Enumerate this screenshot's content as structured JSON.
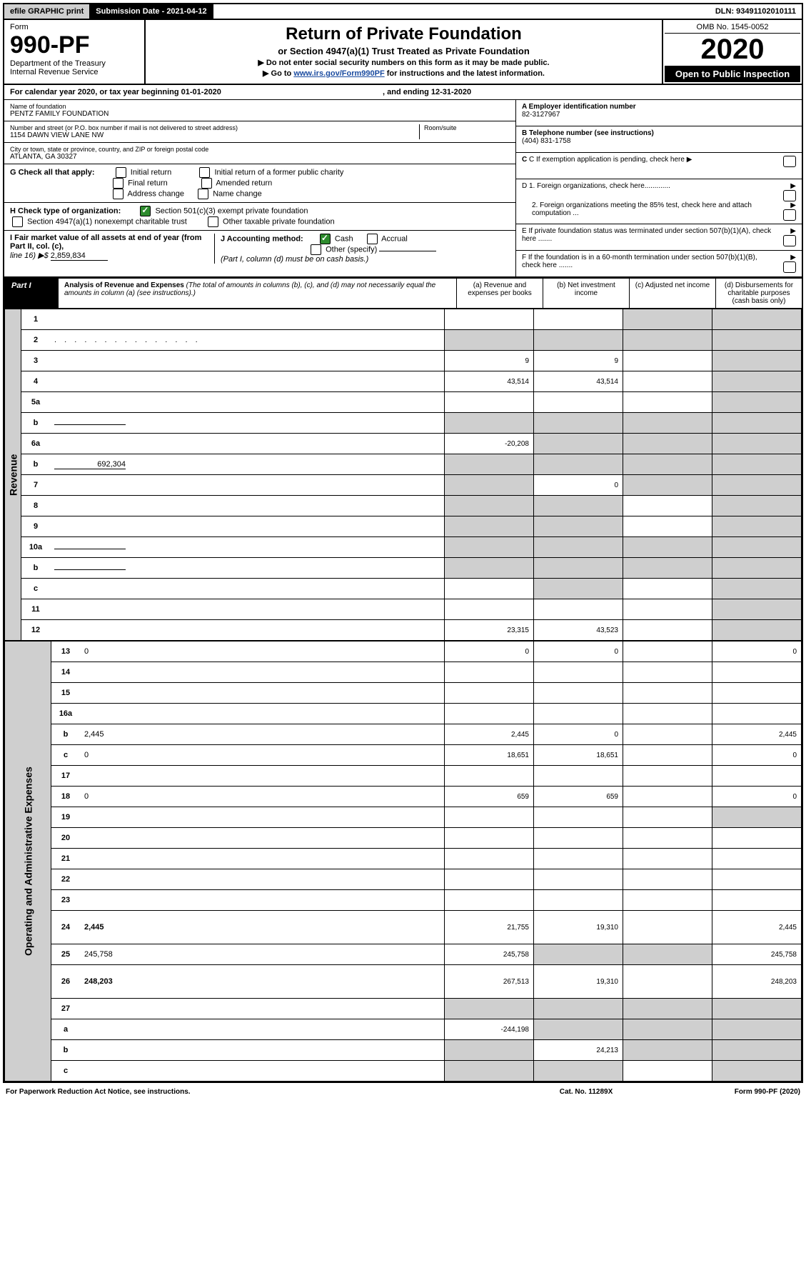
{
  "topbar": {
    "efile": "efile GRAPHIC print",
    "submission": "Submission Date - 2021-04-12",
    "dln": "DLN: 93491102010111"
  },
  "header": {
    "form_word": "Form",
    "form_no": "990-PF",
    "dept": "Department of the Treasury",
    "irs": "Internal Revenue Service",
    "title": "Return of Private Foundation",
    "subtitle": "or Section 4947(a)(1) Trust Treated as Private Foundation",
    "warn1": "▶ Do not enter social security numbers on this form as it may be made public.",
    "warn2_pre": "▶ Go to ",
    "warn2_link": "www.irs.gov/Form990PF",
    "warn2_post": " for instructions and the latest information.",
    "omb": "OMB No. 1545-0052",
    "year": "2020",
    "open": "Open to Public Inspection"
  },
  "calyear": "For calendar year 2020, or tax year beginning 01-01-2020",
  "calyear_end": ", and ending 12-31-2020",
  "info": {
    "name_lab": "Name of foundation",
    "name": "PENTZ FAMILY FOUNDATION",
    "addr_lab": "Number and street (or P.O. box number if mail is not delivered to street address)",
    "addr": "1154 DAWN VIEW LANE NW",
    "room_lab": "Room/suite",
    "city_lab": "City or town, state or province, country, and ZIP or foreign postal code",
    "city": "ATLANTA, GA  30327",
    "ein_lab": "A Employer identification number",
    "ein": "82-3127967",
    "tel_lab": "B Telephone number (see instructions)",
    "tel": "(404) 831-1758",
    "c_lab": "C If exemption application is pending, check here",
    "d1": "D 1. Foreign organizations, check here.............",
    "d2": "2. Foreign organizations meeting the 85% test, check here and attach computation ...",
    "e": "E  If private foundation status was terminated under section 507(b)(1)(A), check here .......",
    "f": "F  If the foundation is in a 60-month termination under section 507(b)(1)(B), check here ......."
  },
  "g": {
    "label": "G Check all that apply:",
    "initial": "Initial return",
    "final": "Final return",
    "address": "Address change",
    "initial_former": "Initial return of a former public charity",
    "amended": "Amended return",
    "name": "Name change"
  },
  "h": {
    "label": "H Check type of organization:",
    "s501": "Section 501(c)(3) exempt private foundation",
    "s4947": "Section 4947(a)(1) nonexempt charitable trust",
    "other_tax": "Other taxable private foundation"
  },
  "i": {
    "label": "I Fair market value of all assets at end of year (from Part II, col. (c),",
    "line": "line 16) ▶$",
    "value": "2,859,834"
  },
  "j": {
    "label": "J Accounting method:",
    "cash": "Cash",
    "accrual": "Accrual",
    "other": "Other (specify)",
    "note": "(Part I, column (d) must be on cash basis.)"
  },
  "part1": {
    "label": "Part I",
    "title": "Analysis of Revenue and Expenses",
    "paren": "(The total of amounts in columns (b), (c), and (d) may not necessarily equal the amounts in column (a) (see instructions).)",
    "col_a": "(a)   Revenue and expenses per books",
    "col_b": "(b)  Net investment income",
    "col_c": "(c)  Adjusted net income",
    "col_d": "(d)  Disbursements for charitable purposes (cash basis only)"
  },
  "revenue_label": "Revenue",
  "expenses_label": "Operating and Administrative Expenses",
  "rows": [
    {
      "n": "1",
      "d": "",
      "a": "",
      "b": "",
      "c": "",
      "shade_c": true,
      "shade_d": true
    },
    {
      "n": "2",
      "d": "",
      "a": "",
      "b": "",
      "c": "",
      "shade_a": true,
      "shade_b": true,
      "shade_c": true,
      "shade_d": true,
      "has_check": true
    },
    {
      "n": "3",
      "d": "",
      "a": "9",
      "b": "9",
      "c": "",
      "shade_d": true
    },
    {
      "n": "4",
      "d": "",
      "a": "43,514",
      "b": "43,514",
      "c": "",
      "shade_d": true
    },
    {
      "n": "5a",
      "d": "",
      "a": "",
      "b": "",
      "c": "",
      "shade_d": true
    },
    {
      "n": "b",
      "d": "",
      "a": "",
      "b": "",
      "c": "",
      "shade_a": true,
      "shade_b": true,
      "shade_c": true,
      "shade_d": true,
      "inline": true
    },
    {
      "n": "6a",
      "d": "",
      "a": "-20,208",
      "b": "",
      "c": "",
      "shade_b": true,
      "shade_c": true,
      "shade_d": true
    },
    {
      "n": "b",
      "d": "",
      "a": "",
      "b": "",
      "c": "",
      "shade_a": true,
      "shade_b": true,
      "shade_c": true,
      "shade_d": true,
      "inline": true,
      "inline_val": "692,304"
    },
    {
      "n": "7",
      "d": "",
      "a": "",
      "b": "0",
      "c": "",
      "shade_a": true,
      "shade_c": true,
      "shade_d": true
    },
    {
      "n": "8",
      "d": "",
      "a": "",
      "b": "",
      "c": "",
      "shade_a": true,
      "shade_b": true,
      "shade_d": true
    },
    {
      "n": "9",
      "d": "",
      "a": "",
      "b": "",
      "c": "",
      "shade_a": true,
      "shade_b": true,
      "shade_d": true
    },
    {
      "n": "10a",
      "d": "",
      "a": "",
      "b": "",
      "c": "",
      "shade_a": true,
      "shade_b": true,
      "shade_c": true,
      "shade_d": true,
      "inline": true
    },
    {
      "n": "b",
      "d": "",
      "a": "",
      "b": "",
      "c": "",
      "shade_a": true,
      "shade_b": true,
      "shade_c": true,
      "shade_d": true,
      "inline": true
    },
    {
      "n": "c",
      "d": "",
      "a": "",
      "b": "",
      "c": "",
      "shade_b": true,
      "shade_d": true
    },
    {
      "n": "11",
      "d": "",
      "a": "",
      "b": "",
      "c": "",
      "shade_d": true
    },
    {
      "n": "12",
      "d": "",
      "a": "23,315",
      "b": "43,523",
      "c": "",
      "shade_d": true,
      "bold": true
    }
  ],
  "exp_rows": [
    {
      "n": "13",
      "d": "0",
      "a": "0",
      "b": "0",
      "c": ""
    },
    {
      "n": "14",
      "d": "",
      "a": "",
      "b": "",
      "c": ""
    },
    {
      "n": "15",
      "d": "",
      "a": "",
      "b": "",
      "c": ""
    },
    {
      "n": "16a",
      "d": "",
      "a": "",
      "b": "",
      "c": ""
    },
    {
      "n": "b",
      "d": "2,445",
      "a": "2,445",
      "b": "0",
      "c": ""
    },
    {
      "n": "c",
      "d": "0",
      "a": "18,651",
      "b": "18,651",
      "c": ""
    },
    {
      "n": "17",
      "d": "",
      "a": "",
      "b": "",
      "c": ""
    },
    {
      "n": "18",
      "d": "0",
      "a": "659",
      "b": "659",
      "c": ""
    },
    {
      "n": "19",
      "d": "",
      "a": "",
      "b": "",
      "c": "",
      "shade_d": true
    },
    {
      "n": "20",
      "d": "",
      "a": "",
      "b": "",
      "c": ""
    },
    {
      "n": "21",
      "d": "",
      "a": "",
      "b": "",
      "c": ""
    },
    {
      "n": "22",
      "d": "",
      "a": "",
      "b": "",
      "c": ""
    },
    {
      "n": "23",
      "d": "",
      "a": "",
      "b": "",
      "c": ""
    },
    {
      "n": "24",
      "d": "2,445",
      "a": "21,755",
      "b": "19,310",
      "c": "",
      "bold": true,
      "tall": true
    },
    {
      "n": "25",
      "d": "245,758",
      "a": "245,758",
      "b": "",
      "c": "",
      "shade_b": true,
      "shade_c": true
    },
    {
      "n": "26",
      "d": "248,203",
      "a": "267,513",
      "b": "19,310",
      "c": "",
      "bold": true,
      "tall": true
    },
    {
      "n": "27",
      "d": "",
      "a": "",
      "b": "",
      "c": "",
      "shade_a": true,
      "shade_b": true,
      "shade_c": true,
      "shade_d": true
    },
    {
      "n": "a",
      "d": "",
      "a": "-244,198",
      "b": "",
      "c": "",
      "shade_b": true,
      "shade_c": true,
      "shade_d": true,
      "bold": true
    },
    {
      "n": "b",
      "d": "",
      "a": "",
      "b": "24,213",
      "c": "",
      "shade_a": true,
      "shade_c": true,
      "shade_d": true,
      "bold": true
    },
    {
      "n": "c",
      "d": "",
      "a": "",
      "b": "",
      "c": "",
      "shade_a": true,
      "shade_b": true,
      "shade_d": true,
      "bold": true
    }
  ],
  "footer": {
    "left": "For Paperwork Reduction Act Notice, see instructions.",
    "mid": "Cat. No. 11289X",
    "right": "Form 990-PF (2020)"
  }
}
